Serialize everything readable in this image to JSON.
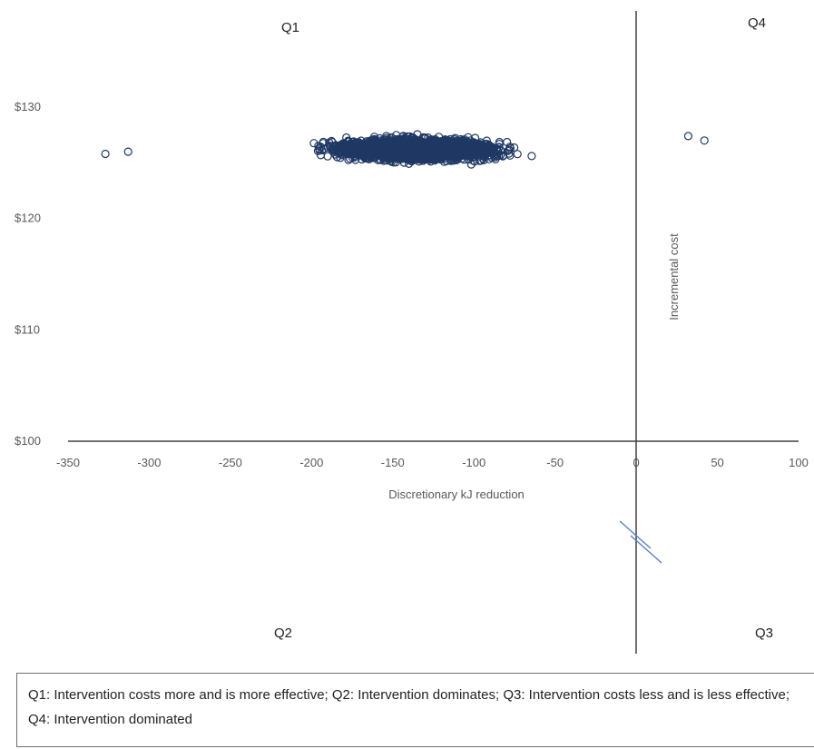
{
  "chart_data": {
    "type": "scatter",
    "title": "",
    "xlabel": "Discretionary kJ reduction",
    "ylabel": "Incremental cost",
    "xlim": [
      -350,
      100
    ],
    "ylim": [
      100,
      130
    ],
    "x_ticks": [
      "-350",
      "-300",
      "-250",
      "-200",
      "-150",
      "-100",
      "-50",
      "0",
      "50",
      "100"
    ],
    "y_ticks": [
      "$100",
      "$110",
      "$120",
      "$130"
    ],
    "grid": false,
    "series": [
      {
        "color": "#1f3864",
        "marker": "open-circle",
        "summary": {
          "x_min": -327,
          "x_max": 42,
          "y_min": 123.8,
          "y_max": 128.6,
          "y_center": 126.2
        }
      }
    ],
    "quadrant_labels": {
      "q1": "Q1",
      "q2": "Q2",
      "q3": "Q3",
      "q4": "Q4"
    }
  },
  "legend_note": "Q1: Intervention costs more and is more effective; Q2: Intervention dominates; Q3: Intervention costs less and is less effective; Q4: Intervention dominated",
  "colors": {
    "points": "#1f3864",
    "axis": "#404040",
    "break_marks": "#4f7ec4"
  }
}
